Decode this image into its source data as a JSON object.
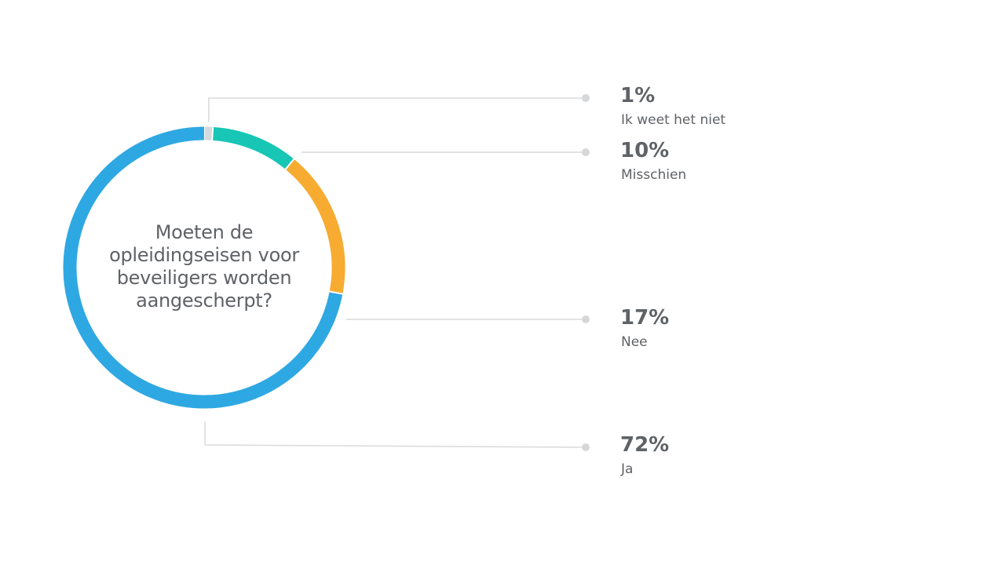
{
  "chart_data": {
    "type": "pie",
    "title_lines": [
      "Moeten de",
      "opleidingseisen voor",
      "beveiligers worden",
      "aangescherpt?"
    ],
    "categories": [
      "Ik weet het niet",
      "Misschien",
      "Nee",
      "Ja"
    ],
    "values": [
      1,
      10,
      17,
      72
    ],
    "value_labels": [
      "1%",
      "10%",
      "17%",
      "72%"
    ],
    "colors": [
      "#d6d9dd",
      "#17c6b4",
      "#f7ab31",
      "#2ea8e2"
    ],
    "unit": "%"
  }
}
